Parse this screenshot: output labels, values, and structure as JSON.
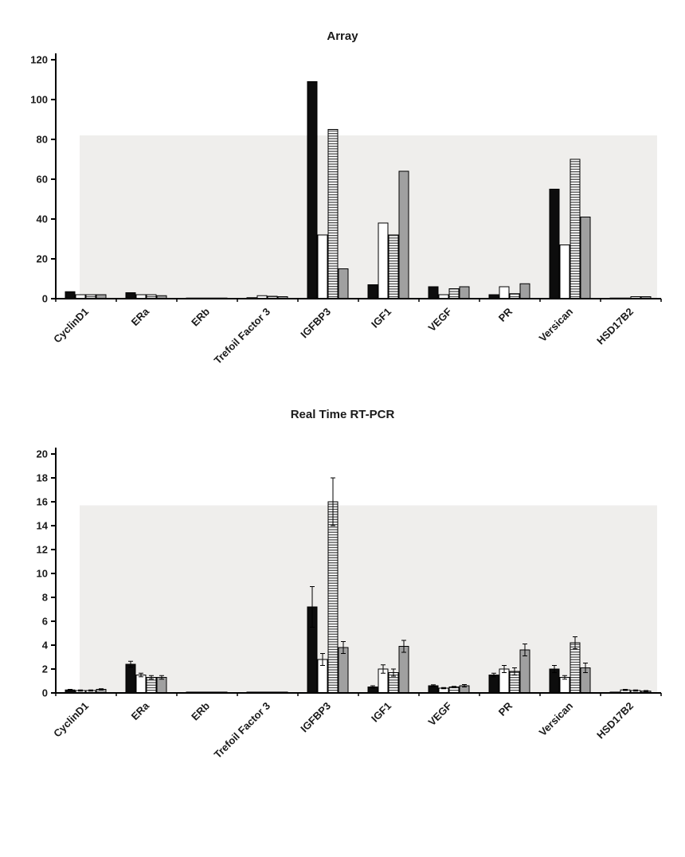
{
  "colors": {
    "bar_black": "#0d0d0d",
    "bar_white": "#ffffff",
    "bar_gray": "#a0a0a0",
    "stripe_line": "#4d4d4d",
    "bar_stroke": "#000000",
    "axis": "#000000",
    "text": "#1a1a1a",
    "plot_bg": "#efeeec"
  },
  "chart_data": [
    {
      "type": "bar",
      "title": "Array",
      "xlabel": "",
      "ylabel": "",
      "ylim": [
        0,
        120
      ],
      "ytick_step": 20,
      "grid": false,
      "legend": "none",
      "plot_bg": {
        "y_max": 82
      },
      "categories": [
        "CyclinD1",
        "ERa",
        "ERb",
        "Trefoil Factor 3",
        "IGFBP3",
        "IGF1",
        "VEGF",
        "PR",
        "Versican",
        "HSD17B2"
      ],
      "series": [
        {
          "name": "black-solid",
          "style": "black",
          "values": [
            3.5,
            3,
            0.2,
            0.5,
            109,
            7,
            6,
            2,
            55,
            0.2
          ]
        },
        {
          "name": "white-open",
          "style": "white",
          "values": [
            2,
            2,
            0.2,
            1.5,
            32,
            38,
            2,
            6,
            27,
            0.2
          ]
        },
        {
          "name": "hatched",
          "style": "striped",
          "values": [
            2,
            2,
            0.2,
            1.2,
            85,
            32,
            5,
            2.5,
            70,
            1
          ]
        },
        {
          "name": "gray",
          "style": "gray",
          "values": [
            2,
            1.5,
            0.2,
            1,
            15,
            64,
            6,
            7.5,
            41,
            1
          ]
        }
      ]
    },
    {
      "type": "bar",
      "title": "Real Time RT-PCR",
      "xlabel": "",
      "ylabel": "",
      "ylim": [
        0,
        20
      ],
      "ytick_step": 2,
      "grid": false,
      "legend": "none",
      "plot_bg": {
        "y_max": 15.7
      },
      "categories": [
        "CyclinD1",
        "ERa",
        "ERb",
        "Trefoil Factor 3",
        "IGFBP3",
        "IGF1",
        "VEGF",
        "PR",
        "Versican",
        "HSD17B2"
      ],
      "series": [
        {
          "name": "black-solid",
          "style": "black",
          "values": [
            0.25,
            2.4,
            0.07,
            0.07,
            7.2,
            0.5,
            0.6,
            1.5,
            2.0,
            0.07
          ],
          "errors": [
            0.05,
            0.25,
            0,
            0,
            1.7,
            0.1,
            0.08,
            0.15,
            0.3,
            0
          ]
        },
        {
          "name": "white-open",
          "style": "white",
          "values": [
            0.2,
            1.5,
            0.07,
            0.07,
            2.8,
            2.0,
            0.4,
            2.0,
            1.3,
            0.25
          ],
          "errors": [
            0.05,
            0.15,
            0,
            0,
            0.5,
            0.35,
            0.05,
            0.3,
            0.15,
            0.05
          ]
        },
        {
          "name": "hatched",
          "style": "striped",
          "values": [
            0.2,
            1.3,
            0.07,
            0.07,
            16.0,
            1.7,
            0.5,
            1.8,
            4.2,
            0.2
          ],
          "errors": [
            0.05,
            0.15,
            0,
            0,
            2.0,
            0.3,
            0.05,
            0.3,
            0.5,
            0.05
          ]
        },
        {
          "name": "gray",
          "style": "gray",
          "values": [
            0.3,
            1.3,
            0.07,
            0.07,
            3.8,
            3.9,
            0.6,
            3.6,
            2.1,
            0.15
          ],
          "errors": [
            0.05,
            0.15,
            0,
            0,
            0.5,
            0.5,
            0.1,
            0.5,
            0.4,
            0.05
          ]
        }
      ]
    }
  ]
}
